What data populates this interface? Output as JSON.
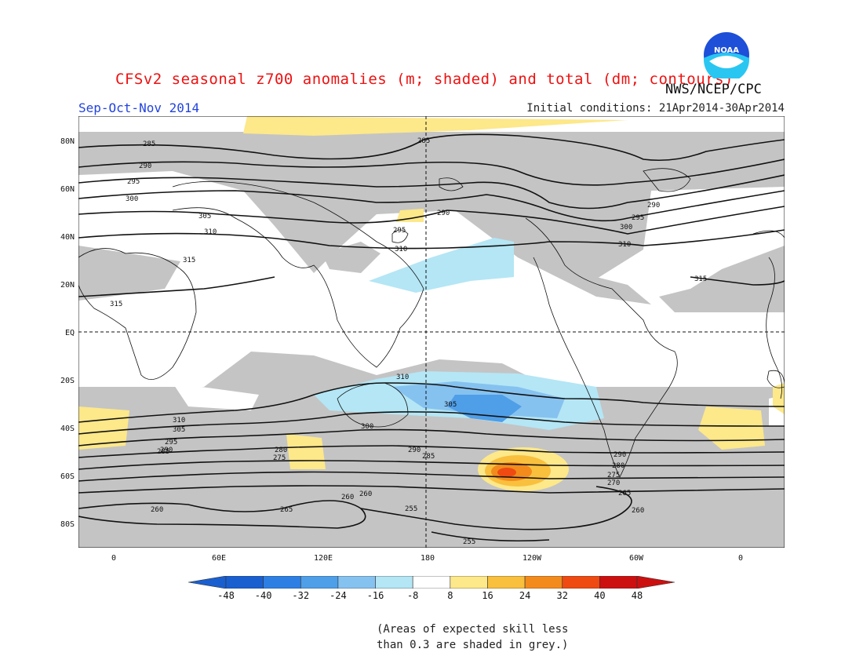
{
  "header": {
    "title": "CFSv2 seasonal z700 anomalies (m; shaded) and total (dm; contours)",
    "agency": "NWS/NCEP/CPC",
    "season": "Sep-Oct-Nov 2014",
    "initial_conditions": "Initial conditions: 21Apr2014-30Apr2014",
    "logo_text": "NOAA"
  },
  "map": {
    "lat_labels": [
      "80N",
      "60N",
      "40N",
      "20N",
      "EQ",
      "20S",
      "40S",
      "60S",
      "80S"
    ],
    "lon_labels": [
      "0",
      "60E",
      "120E",
      "180",
      "120W",
      "60W",
      "0"
    ],
    "contour_labels": [
      "285",
      "290",
      "295",
      "300",
      "305",
      "310",
      "315",
      "280",
      "275",
      "270",
      "265",
      "260",
      "255"
    ],
    "skill_shade_color": "#c4c4c4"
  },
  "colorbar": {
    "ticks": [
      "-48",
      "-40",
      "-32",
      "-24",
      "-16",
      "-8",
      "8",
      "16",
      "24",
      "32",
      "40",
      "48"
    ],
    "colors": [
      "#1a5fd0",
      "#2e7fe3",
      "#4f9ee8",
      "#86c2f0",
      "#b4e6f5",
      "#ffffff",
      "#fde88a",
      "#f9c03e",
      "#f38b1c",
      "#ee4a12",
      "#cc1010"
    ]
  },
  "footnote": {
    "line1": "(Areas of expected skill less",
    "line2": "than 0.3 are shaded in grey.)"
  }
}
